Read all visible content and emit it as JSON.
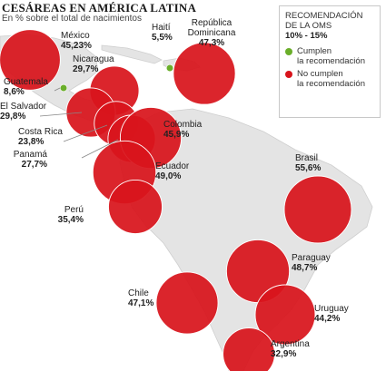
{
  "header": {
    "title": "CESÁREAS EN AMÉRICA LATINA",
    "subtitle": "En % sobre el total de nacimientos"
  },
  "legend": {
    "heading_line1": "RECOMENDACIÓN",
    "heading_line2": "DE LA OMS",
    "range": "10% - 15%",
    "meets_line1": "Cumplen",
    "meets_line2": "la recomendación",
    "fails_line1": "No cumplen",
    "fails_line2": "la recomendación"
  },
  "colors": {
    "fails": "#d8141c",
    "meets": "#6aae2a",
    "land": "#e4e4e4",
    "land_stroke": "#cfcfcf"
  },
  "chart_data": {
    "type": "bubble-map",
    "title": "CESÁREAS EN AMÉRICA LATINA",
    "subtitle": "En % sobre el total de nacimientos",
    "unit": "%",
    "recommended_range": [
      10,
      15
    ],
    "series": [
      {
        "name": "Cumplen la recomendación",
        "color": "#6aae2a"
      },
      {
        "name": "No cumplen la recomendación",
        "color": "#d8141c"
      }
    ],
    "countries": [
      {
        "name": "México",
        "value_label": "45,23%",
        "value": 45.23,
        "meets": false
      },
      {
        "name": "República Dominicana",
        "value_label": "47,3%",
        "value": 47.3,
        "meets": false
      },
      {
        "name": "Haití",
        "value_label": "5,5%",
        "value": 5.5,
        "meets": true
      },
      {
        "name": "Nicaragua",
        "value_label": "29,7%",
        "value": 29.7,
        "meets": false
      },
      {
        "name": "Guatemala",
        "value_label": "8,6%",
        "value": 8.6,
        "meets": true
      },
      {
        "name": "El Salvador",
        "value_label": "29,8%",
        "value": 29.8,
        "meets": false
      },
      {
        "name": "Costa Rica",
        "value_label": "23,8%",
        "value": 23.8,
        "meets": false
      },
      {
        "name": "Panamá",
        "value_label": "27,7%",
        "value": 27.7,
        "meets": false
      },
      {
        "name": "Colombia",
        "value_label": "45,9%",
        "value": 45.9,
        "meets": false
      },
      {
        "name": "Ecuador",
        "value_label": "49,0%",
        "value": 49.0,
        "meets": false
      },
      {
        "name": "Perú",
        "value_label": "35,4%",
        "value": 35.4,
        "meets": false
      },
      {
        "name": "Brasil",
        "value_label": "55,6%",
        "value": 55.6,
        "meets": false
      },
      {
        "name": "Paraguay",
        "value_label": "48,7%",
        "value": 48.7,
        "meets": false
      },
      {
        "name": "Chile",
        "value_label": "47,1%",
        "value": 47.1,
        "meets": false
      },
      {
        "name": "Uruguay",
        "value_label": "44,2%",
        "value": 44.2,
        "meets": false
      },
      {
        "name": "Argentina",
        "value_label": "32,9%",
        "value": 32.9,
        "meets": false
      }
    ]
  }
}
